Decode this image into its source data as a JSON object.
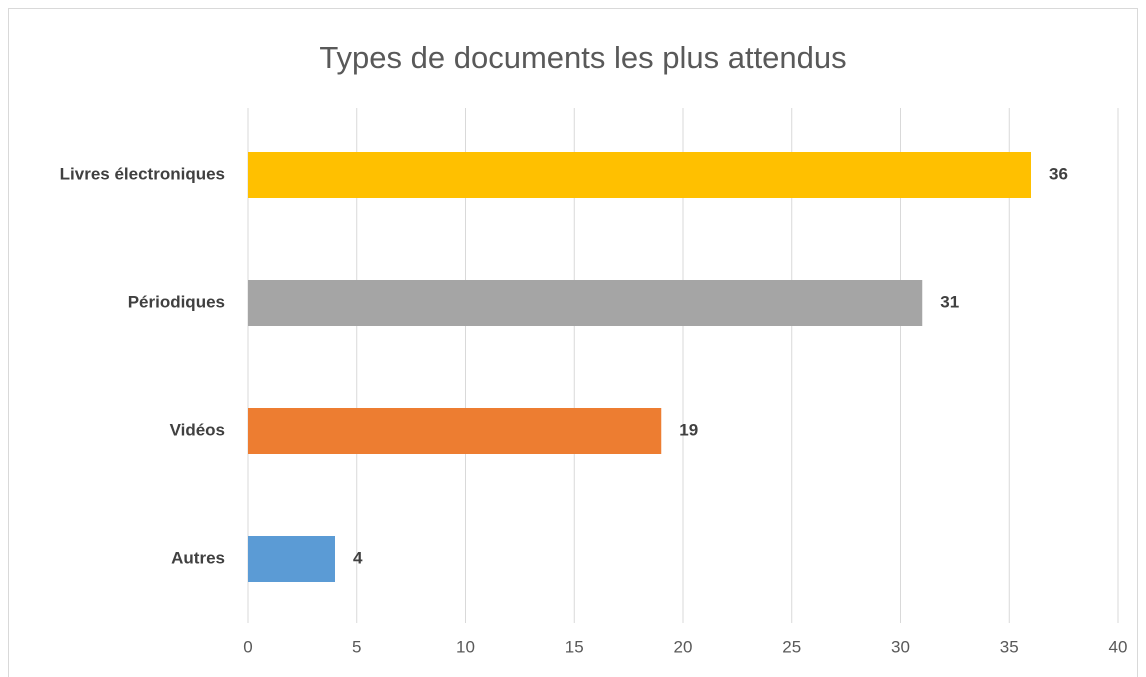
{
  "chart_data": {
    "type": "barh",
    "title": "Types de documents les plus attendus",
    "categories": [
      "Livres électroniques",
      "Périodiques",
      "Vidéos",
      "Autres"
    ],
    "values": [
      36,
      31,
      19,
      4
    ],
    "colors": [
      "#ffc000",
      "#a5a5a5",
      "#ed7d31",
      "#5b9bd5"
    ],
    "xlim": [
      0,
      40
    ],
    "xticks": [
      0,
      5,
      10,
      15,
      20,
      25,
      30,
      35,
      40
    ],
    "grid": true
  }
}
